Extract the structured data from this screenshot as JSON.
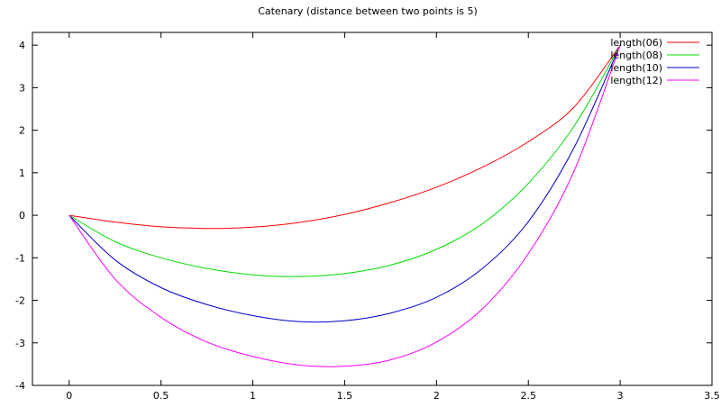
{
  "chart_data": {
    "type": "line",
    "title": "Catenary (distance between two points is 5)",
    "xlabel": "",
    "ylabel": "",
    "xlim": [
      -0.2,
      3.5
    ],
    "ylim": [
      -4,
      4.3
    ],
    "x_ticks": [
      "0",
      "0.5",
      "1",
      "1.5",
      "2",
      "2.5",
      "3",
      "3.5"
    ],
    "y_ticks": [
      "4",
      "3",
      "2",
      "1",
      "0",
      "-1",
      "-2",
      "-3",
      "-4"
    ],
    "x_tick_values": [
      0,
      0.5,
      1,
      1.5,
      2,
      2.5,
      3,
      3.5
    ],
    "y_tick_values": [
      4,
      3,
      2,
      1,
      0,
      -1,
      -2,
      -3,
      -4
    ],
    "grid": false,
    "legend_position": "top-right",
    "series": [
      {
        "name": "length(06)",
        "color": "#ff0000",
        "x": [
          0,
          0.25,
          0.5,
          0.75,
          1.0,
          1.25,
          1.5,
          1.75,
          2.0,
          2.25,
          2.5,
          2.75,
          3.0
        ],
        "y": [
          0,
          -0.16,
          -0.27,
          -0.31,
          -0.28,
          -0.17,
          0.02,
          0.3,
          0.66,
          1.13,
          1.73,
          2.55,
          4.0
        ]
      },
      {
        "name": "length(08)",
        "color": "#00dd00",
        "x": [
          0,
          0.25,
          0.5,
          0.75,
          1.0,
          1.25,
          1.5,
          1.75,
          2.0,
          2.25,
          2.5,
          2.75,
          3.0
        ],
        "y": [
          0,
          -0.62,
          -1.0,
          -1.25,
          -1.4,
          -1.44,
          -1.37,
          -1.17,
          -0.8,
          -0.2,
          0.75,
          2.1,
          4.0
        ]
      },
      {
        "name": "length(10)",
        "color": "#0000cc",
        "x": [
          0,
          0.25,
          0.5,
          0.75,
          1.0,
          1.25,
          1.5,
          1.75,
          2.0,
          2.25,
          2.5,
          2.75,
          3.0
        ],
        "y": [
          0,
          -1.05,
          -1.7,
          -2.1,
          -2.36,
          -2.5,
          -2.48,
          -2.3,
          -1.93,
          -1.25,
          -0.15,
          1.6,
          4.0
        ]
      },
      {
        "name": "length(12)",
        "color": "#ff00ff",
        "x": [
          0,
          0.25,
          0.5,
          0.75,
          1.0,
          1.25,
          1.5,
          1.75,
          2.0,
          2.25,
          2.5,
          2.75,
          3.0
        ],
        "y": [
          0,
          -1.5,
          -2.4,
          -2.98,
          -3.32,
          -3.52,
          -3.55,
          -3.4,
          -2.98,
          -2.2,
          -0.9,
          1.05,
          4.0
        ]
      }
    ]
  }
}
